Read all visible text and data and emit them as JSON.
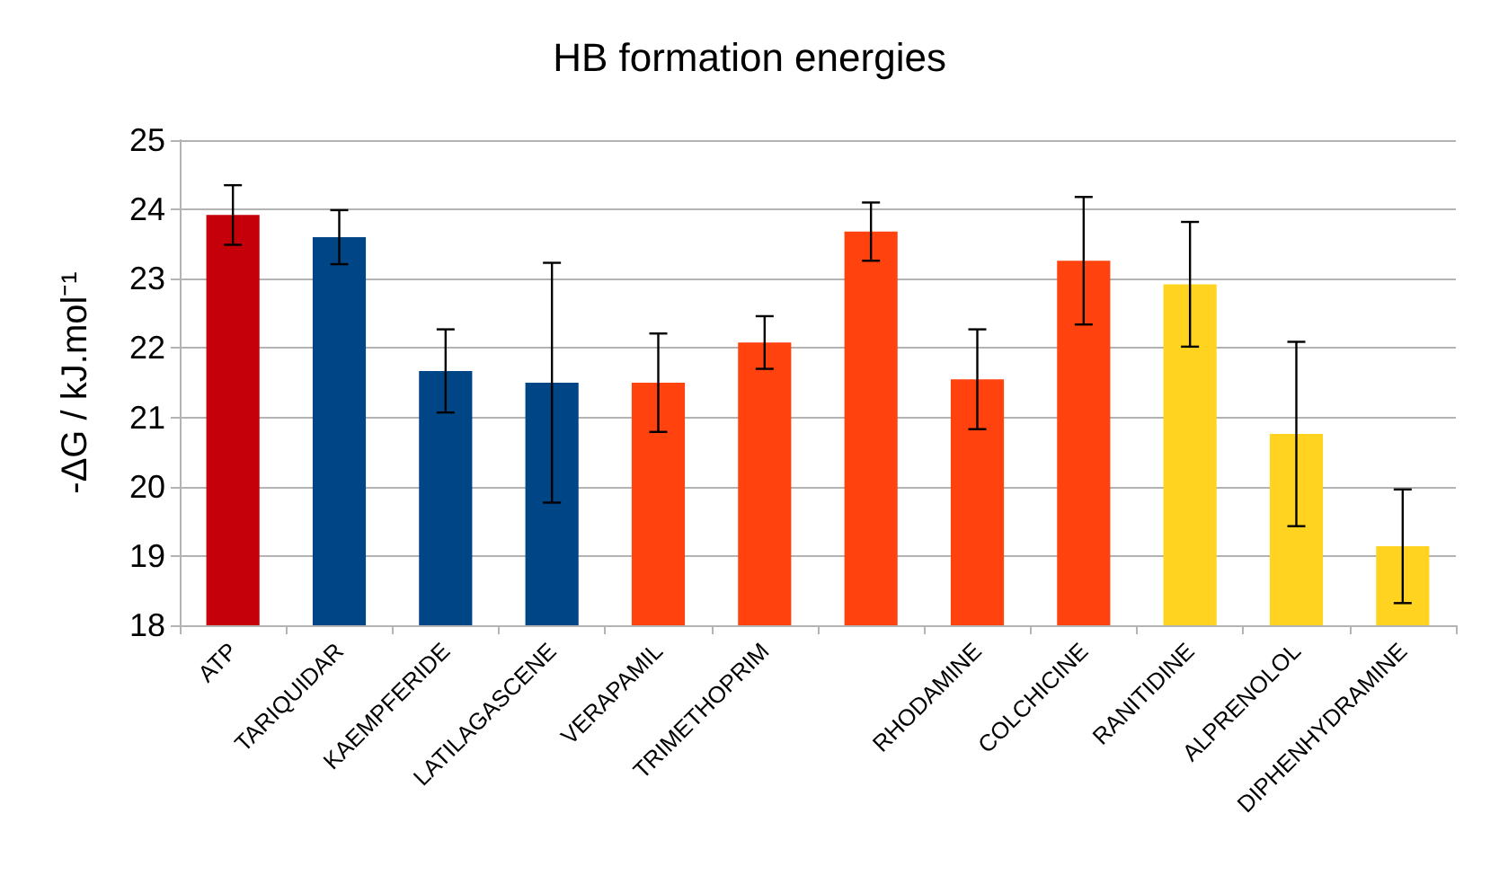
{
  "chart_data": {
    "type": "bar",
    "title": "HB formation energies",
    "ylabel": "-ΔG / kJ.mol⁻¹",
    "categories": [
      "ATP",
      "TARIQUIDAR",
      "KAEMPFERIDE",
      "LATILAGASCENE",
      "VERAPAMIL",
      "TRIMETHOPRIM",
      null,
      "RHODAMINE",
      "COLCHICINE",
      "RANITIDINE",
      "ALPRENOLOL",
      "DIPHENHYDRAMINE"
    ],
    "values": [
      23.92,
      23.6,
      21.67,
      21.5,
      21.5,
      22.08,
      23.68,
      21.55,
      23.26,
      22.92,
      20.76,
      19.14
    ],
    "errors": [
      0.43,
      0.39,
      0.6,
      1.73,
      0.71,
      0.38,
      0.42,
      0.72,
      0.92,
      0.9,
      1.33,
      0.82
    ],
    "colors": [
      "#c5000b",
      "#004586",
      "#004586",
      "#004586",
      "#ff420e",
      "#ff420e",
      "#ff420e",
      "#ff420e",
      "#ff420e",
      "#ffd320",
      "#ffd320",
      "#ffd320"
    ],
    "ylim": [
      18,
      25
    ],
    "yticks": [
      18,
      19,
      20,
      21,
      22,
      23,
      24,
      25
    ],
    "grid": "y"
  }
}
